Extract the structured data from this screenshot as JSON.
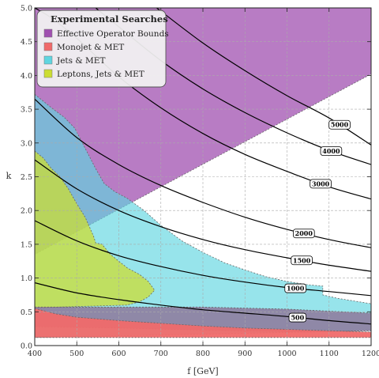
{
  "chart_data": {
    "type": "area",
    "xlabel": "f [GeV]",
    "ylabel": "k",
    "xlim": [
      400,
      1200
    ],
    "ylim": [
      0,
      5.0
    ],
    "x_ticks": [
      400,
      500,
      600,
      700,
      800,
      900,
      1000,
      1100,
      1200
    ],
    "y_ticks": [
      "0.0",
      "0.5",
      "1.0",
      "1.5",
      "2.0",
      "2.5",
      "3.0",
      "3.5",
      "4.0",
      "4.5",
      "5.0"
    ],
    "grid": true,
    "legend": {
      "title": "Experimental Searches",
      "placement": "top-left",
      "entries": [
        {
          "label": "Effective Operator Bounds",
          "color": "#a050b0"
        },
        {
          "label": "Monojet & MET",
          "color": "#f06a6a"
        },
        {
          "label": "Jets & MET",
          "color": "#5fd5e0"
        },
        {
          "label": "Leptons, Jets & MET",
          "color": "#ccdd33"
        }
      ]
    },
    "regions": [
      {
        "name": "Effective Operator Bounds",
        "color": "#a050b0",
        "opacity": 0.75,
        "boundary": [
          [
            400,
            5.0
          ],
          [
            1200,
            5.0
          ],
          [
            1200,
            4.02
          ],
          [
            400,
            1.35
          ]
        ]
      },
      {
        "name": "Jets & MET",
        "color": "#5fd5e0",
        "opacity": 0.65,
        "boundary": [
          [
            400,
            3.72
          ],
          [
            440,
            3.52
          ],
          [
            470,
            3.38
          ],
          [
            495,
            3.22
          ],
          [
            520,
            2.92
          ],
          [
            545,
            2.62
          ],
          [
            565,
            2.4
          ],
          [
            590,
            2.28
          ],
          [
            620,
            2.18
          ],
          [
            660,
            2.0
          ],
          [
            700,
            1.78
          ],
          [
            750,
            1.55
          ],
          [
            800,
            1.38
          ],
          [
            850,
            1.23
          ],
          [
            900,
            1.12
          ],
          [
            950,
            1.02
          ],
          [
            1000,
            0.95
          ],
          [
            1050,
            0.9
          ],
          [
            1085,
            0.88
          ],
          [
            1085,
            0.75
          ],
          [
            1120,
            0.7
          ],
          [
            1200,
            0.62
          ],
          [
            1200,
            0.22
          ],
          [
            400,
            0.12
          ]
        ]
      },
      {
        "name": "Leptons, Jets & MET",
        "color": "#ccdd33",
        "opacity": 0.75,
        "boundary": [
          [
            400,
            2.88
          ],
          [
            420,
            2.78
          ],
          [
            440,
            2.62
          ],
          [
            460,
            2.5
          ],
          [
            480,
            2.32
          ],
          [
            500,
            2.1
          ],
          [
            520,
            1.9
          ],
          [
            540,
            1.62
          ],
          [
            545,
            1.52
          ],
          [
            560,
            1.5
          ],
          [
            580,
            1.35
          ],
          [
            600,
            1.25
          ],
          [
            620,
            1.15
          ],
          [
            650,
            1.05
          ],
          [
            670,
            0.95
          ],
          [
            685,
            0.82
          ],
          [
            670,
            0.72
          ],
          [
            650,
            0.65
          ],
          [
            620,
            0.6
          ],
          [
            400,
            0.56
          ]
        ]
      },
      {
        "name": "Effective Operator Bounds (low band)",
        "color": "#8c6a90",
        "opacity": 0.75,
        "boundary": [
          [
            400,
            0.57
          ],
          [
            800,
            0.57
          ],
          [
            1000,
            0.54
          ],
          [
            1200,
            0.48
          ],
          [
            1200,
            0.22
          ],
          [
            1050,
            0.2
          ],
          [
            800,
            0.23
          ],
          [
            600,
            0.26
          ],
          [
            400,
            0.28
          ]
        ]
      },
      {
        "name": "Monojet & MET",
        "color": "#f06a6a",
        "opacity": 0.95,
        "boundary": [
          [
            400,
            0.55
          ],
          [
            450,
            0.47
          ],
          [
            500,
            0.42
          ],
          [
            600,
            0.37
          ],
          [
            700,
            0.33
          ],
          [
            800,
            0.29
          ],
          [
            900,
            0.26
          ],
          [
            1000,
            0.24
          ],
          [
            1100,
            0.22
          ],
          [
            1200,
            0.2
          ],
          [
            1200,
            0.12
          ],
          [
            400,
            0.12
          ]
        ]
      }
    ],
    "contours": [
      {
        "label": "500",
        "label_x": 1025,
        "points": [
          [
            400,
            0.93
          ],
          [
            500,
            0.78
          ],
          [
            600,
            0.68
          ],
          [
            700,
            0.6
          ],
          [
            800,
            0.53
          ],
          [
            900,
            0.48
          ],
          [
            1000,
            0.43
          ],
          [
            1100,
            0.37
          ],
          [
            1200,
            0.32
          ]
        ]
      },
      {
        "label": "1000",
        "label_x": 1020,
        "points": [
          [
            400,
            1.85
          ],
          [
            500,
            1.55
          ],
          [
            600,
            1.33
          ],
          [
            700,
            1.17
          ],
          [
            800,
            1.04
          ],
          [
            900,
            0.94
          ],
          [
            1000,
            0.86
          ],
          [
            1100,
            0.8
          ],
          [
            1200,
            0.74
          ]
        ]
      },
      {
        "label": "1500",
        "label_x": 1035,
        "points": [
          [
            400,
            2.75
          ],
          [
            500,
            2.32
          ],
          [
            600,
            2.0
          ],
          [
            700,
            1.76
          ],
          [
            800,
            1.57
          ],
          [
            900,
            1.42
          ],
          [
            1000,
            1.3
          ],
          [
            1100,
            1.19
          ],
          [
            1200,
            1.1
          ]
        ]
      },
      {
        "label": "2000",
        "label_x": 1040,
        "points": [
          [
            400,
            3.65
          ],
          [
            500,
            3.08
          ],
          [
            600,
            2.68
          ],
          [
            700,
            2.37
          ],
          [
            800,
            2.12
          ],
          [
            900,
            1.9
          ],
          [
            1000,
            1.72
          ],
          [
            1100,
            1.57
          ],
          [
            1200,
            1.45
          ]
        ]
      },
      {
        "label": "3000",
        "label_x": 1080,
        "points": [
          [
            400,
            5.0
          ],
          [
            440,
            4.85
          ],
          [
            500,
            4.55
          ],
          [
            600,
            3.98
          ],
          [
            700,
            3.52
          ],
          [
            800,
            3.14
          ],
          [
            900,
            2.83
          ],
          [
            1000,
            2.58
          ],
          [
            1100,
            2.35
          ],
          [
            1200,
            2.17
          ]
        ]
      },
      {
        "label": "4000",
        "label_x": 1105,
        "points": [
          [
            545,
            5.0
          ],
          [
            600,
            4.72
          ],
          [
            700,
            4.22
          ],
          [
            800,
            3.8
          ],
          [
            900,
            3.45
          ],
          [
            1000,
            3.15
          ],
          [
            1100,
            2.89
          ],
          [
            1200,
            2.68
          ]
        ]
      },
      {
        "label": "5000",
        "label_x": 1125,
        "points": [
          [
            690,
            5.0
          ],
          [
            800,
            4.48
          ],
          [
            900,
            4.07
          ],
          [
            1000,
            3.7
          ],
          [
            1100,
            3.37
          ],
          [
            1200,
            2.97
          ]
        ]
      }
    ]
  }
}
